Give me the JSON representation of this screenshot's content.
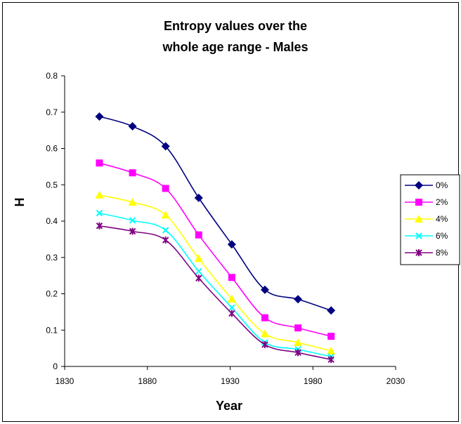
{
  "chart_data": {
    "type": "line",
    "title_line1": "Entropy values over the",
    "title_line2": "whole age range - Males",
    "xlabel": "Year",
    "ylabel": "H",
    "xlim": [
      1830,
      2030
    ],
    "ylim": [
      0,
      0.8
    ],
    "xticks": [
      1830,
      1880,
      1930,
      1980,
      2030
    ],
    "yticks": [
      0,
      0.1,
      0.2,
      0.3,
      0.4,
      0.5,
      0.6,
      0.7,
      0.8
    ],
    "ytick_labels": [
      "0",
      "0.1",
      "0.2",
      "0.3",
      "0.4",
      "0.5",
      "0.6",
      "0.7",
      "0.8"
    ],
    "grid": false,
    "legend_position": "right",
    "x": [
      1851,
      1871,
      1891,
      1911,
      1931,
      1951,
      1971,
      1991
    ],
    "series": [
      {
        "name": "0%",
        "color": "#000080",
        "marker": "diamond",
        "values": [
          0.688,
          0.661,
          0.606,
          0.464,
          0.336,
          0.211,
          0.185,
          0.154
        ]
      },
      {
        "name": "2%",
        "color": "#FF00FF",
        "marker": "square",
        "values": [
          0.56,
          0.533,
          0.49,
          0.362,
          0.245,
          0.134,
          0.106,
          0.083
        ]
      },
      {
        "name": "4%",
        "color": "#FFFF00",
        "marker": "triangle",
        "values": [
          0.472,
          0.452,
          0.417,
          0.297,
          0.186,
          0.09,
          0.066,
          0.043
        ]
      },
      {
        "name": "6%",
        "color": "#00FFFF",
        "marker": "x",
        "values": [
          0.422,
          0.402,
          0.375,
          0.262,
          0.162,
          0.066,
          0.047,
          0.027
        ]
      },
      {
        "name": "8%",
        "color": "#800080",
        "marker": "star",
        "values": [
          0.387,
          0.372,
          0.348,
          0.243,
          0.146,
          0.06,
          0.038,
          0.019
        ]
      }
    ]
  }
}
